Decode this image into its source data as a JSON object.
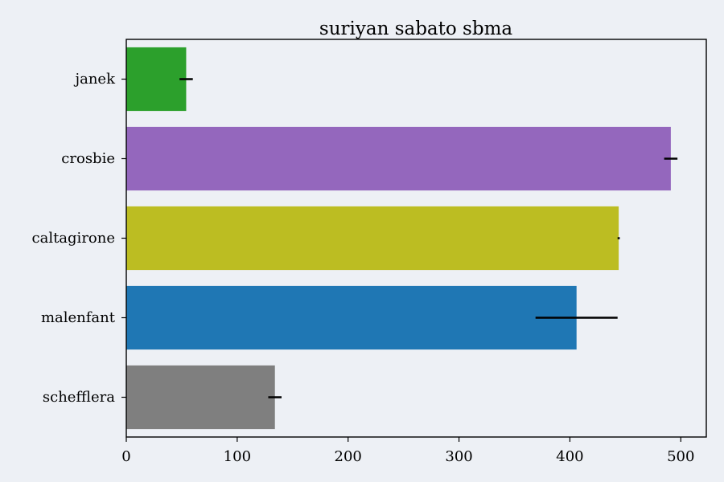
{
  "chart_data": {
    "type": "bar",
    "orientation": "horizontal",
    "title": "suriyan sabato sbma",
    "xlabel": "",
    "ylabel": "",
    "xlim": [
      0,
      523
    ],
    "xticks": [
      0,
      100,
      200,
      300,
      400,
      500
    ],
    "categories": [
      "janek",
      "crosbie",
      "caltagirone",
      "malenfant",
      "schefflera"
    ],
    "values": [
      54,
      491,
      444,
      406,
      134
    ],
    "errors": [
      6,
      6,
      1,
      37,
      6
    ],
    "colors": [
      "#2ca02c",
      "#9467bd",
      "#bcbd22",
      "#1f77b4",
      "#7f7f7f"
    ],
    "grid": false
  }
}
